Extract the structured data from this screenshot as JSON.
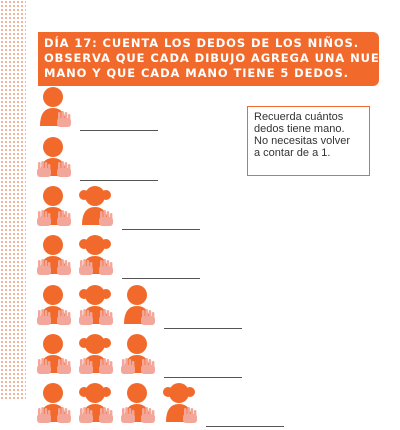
{
  "header": {
    "lines": [
      "DÍA 17: CUENTA LOS DEDOS DE LOS NIÑOS.",
      "OBSERVA QUE CADA DIBUJO AGREGA UNA NUEVA",
      "MANO Y QUE CADA MANO TIENE 5 DEDOS."
    ]
  },
  "hint": {
    "lines": [
      "Recuerda cuántos",
      "dedos tiene mano.",
      "No necesitas volver",
      "a contar de a 1."
    ]
  },
  "colors": {
    "accent": "#f26a2b",
    "hand": "#f3a79a"
  },
  "exercise": {
    "rows": [
      {
        "children": 1,
        "hands": 1,
        "answer": ""
      },
      {
        "children": 1,
        "hands": 2,
        "answer": ""
      },
      {
        "children": 2,
        "hands": 3,
        "answer": ""
      },
      {
        "children": 2,
        "hands": 4,
        "answer": ""
      },
      {
        "children": 3,
        "hands": 5,
        "answer": ""
      },
      {
        "children": 3,
        "hands": 6,
        "answer": ""
      },
      {
        "children": 4,
        "hands": 7,
        "answer": ""
      }
    ]
  }
}
